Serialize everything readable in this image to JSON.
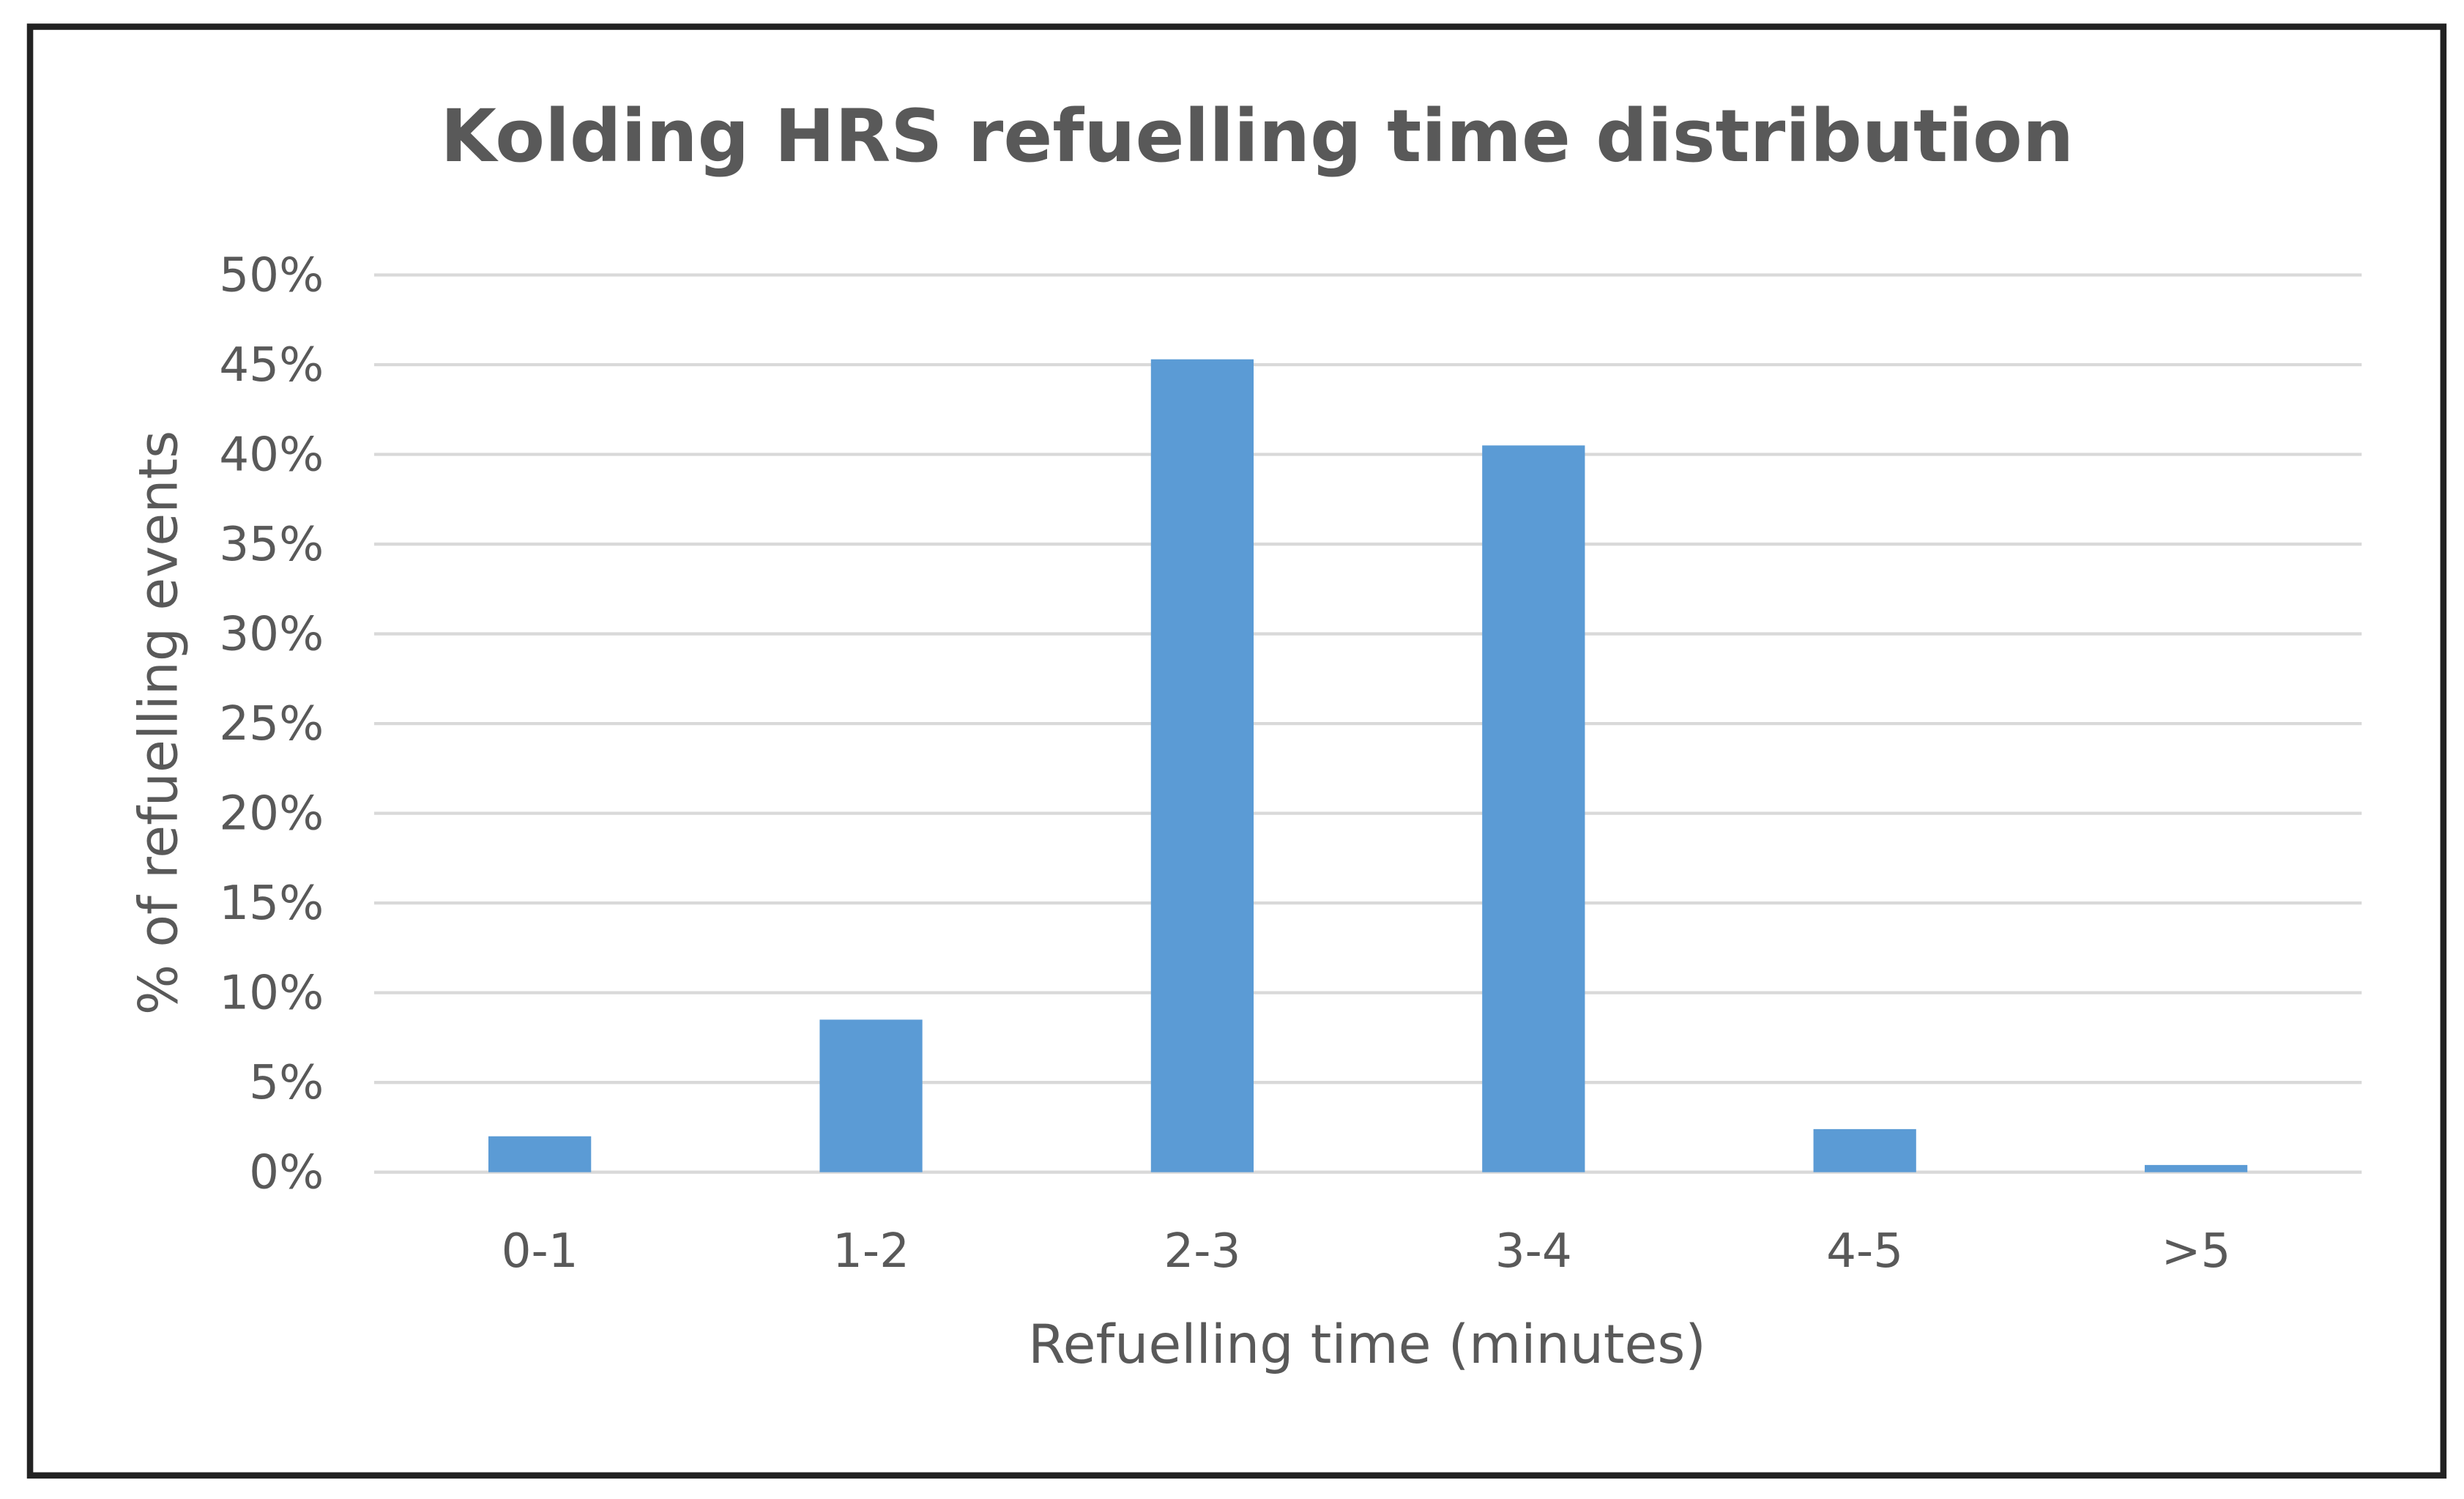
{
  "chart_data": {
    "type": "bar",
    "title": "Kolding HRS refuelling time distribution",
    "x_label": "Refuelling time (minutes)",
    "y_label": "% of refuelling events",
    "categories": [
      "0-1",
      "1-2",
      "2-3",
      "3-4",
      "4-5",
      ">5"
    ],
    "values": [
      2,
      8.5,
      45.3,
      40.5,
      2.4,
      0.4
    ],
    "color": "#5b9bd5",
    "ylim": [
      0,
      50
    ],
    "yticks": [
      {
        "value": 0,
        "label": "0%"
      },
      {
        "value": 5,
        "label": "5%"
      },
      {
        "value": 10,
        "label": "10%"
      },
      {
        "value": 15,
        "label": "15%"
      },
      {
        "value": 20,
        "label": "20%"
      },
      {
        "value": 25,
        "label": "25%"
      },
      {
        "value": 30,
        "label": "30%"
      },
      {
        "value": 35,
        "label": "35%"
      },
      {
        "value": 40,
        "label": "40%"
      },
      {
        "value": 45,
        "label": "45%"
      },
      {
        "value": 50,
        "label": "50%"
      }
    ],
    "grid": true
  }
}
